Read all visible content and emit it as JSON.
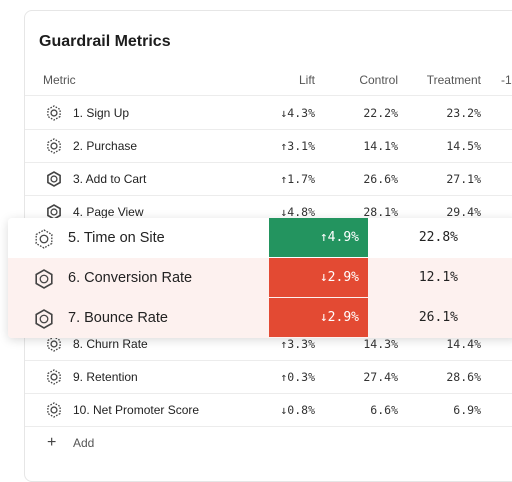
{
  "header": {
    "title": "Guardrail Metrics"
  },
  "table": {
    "columns": [
      "Metric",
      "Lift",
      "Control",
      "Treatment",
      "-1"
    ],
    "rows": [
      {
        "metric": "1. Sign Up",
        "lift": "↓4.3%",
        "control": "22.2%",
        "treatment": "23.2%",
        "icon_style": "dashed"
      },
      {
        "metric": "2. Purchase",
        "lift": "↑3.1%",
        "control": "14.1%",
        "treatment": "14.5%",
        "icon_style": "dashed"
      },
      {
        "metric": "3. Add to Cart",
        "lift": "↑1.7%",
        "control": "26.6%",
        "treatment": "27.1%",
        "icon_style": "solid"
      },
      {
        "metric": "4. Page View",
        "lift": "↓4.8%",
        "control": "28.1%",
        "treatment": "29.4%",
        "icon_style": "solid"
      },
      {
        "metric": "8. Churn Rate",
        "lift": "↑3.3%",
        "control": "14.3%",
        "treatment": "14.4%",
        "icon_style": "dashed"
      },
      {
        "metric": "9. Retention",
        "lift": "↑0.3%",
        "control": "27.4%",
        "treatment": "28.6%",
        "icon_style": "dashed"
      },
      {
        "metric": "10. Net Promoter Score",
        "lift": "↓0.8%",
        "control": "6.6%",
        "treatment": "6.9%",
        "icon_style": "dashed"
      }
    ],
    "add_label": "Add"
  },
  "highlight": {
    "rows": [
      {
        "metric": "5. Time on Site",
        "lift": "↑4.9%",
        "control": "22.8%",
        "icon_style": "dashed",
        "color": "#23945f",
        "row_color": "#ffffff"
      },
      {
        "metric": "6. Conversion Rate",
        "lift": "↓2.9%",
        "control": "12.1%",
        "icon_style": "solid",
        "color": "#e34a33",
        "row_color": "#fdf1ef"
      },
      {
        "metric": "7. Bounce Rate",
        "lift": "↓2.9%",
        "control": "26.1%",
        "icon_style": "solid",
        "color": "#e34a33",
        "row_color": "#fdf1ef"
      }
    ]
  }
}
